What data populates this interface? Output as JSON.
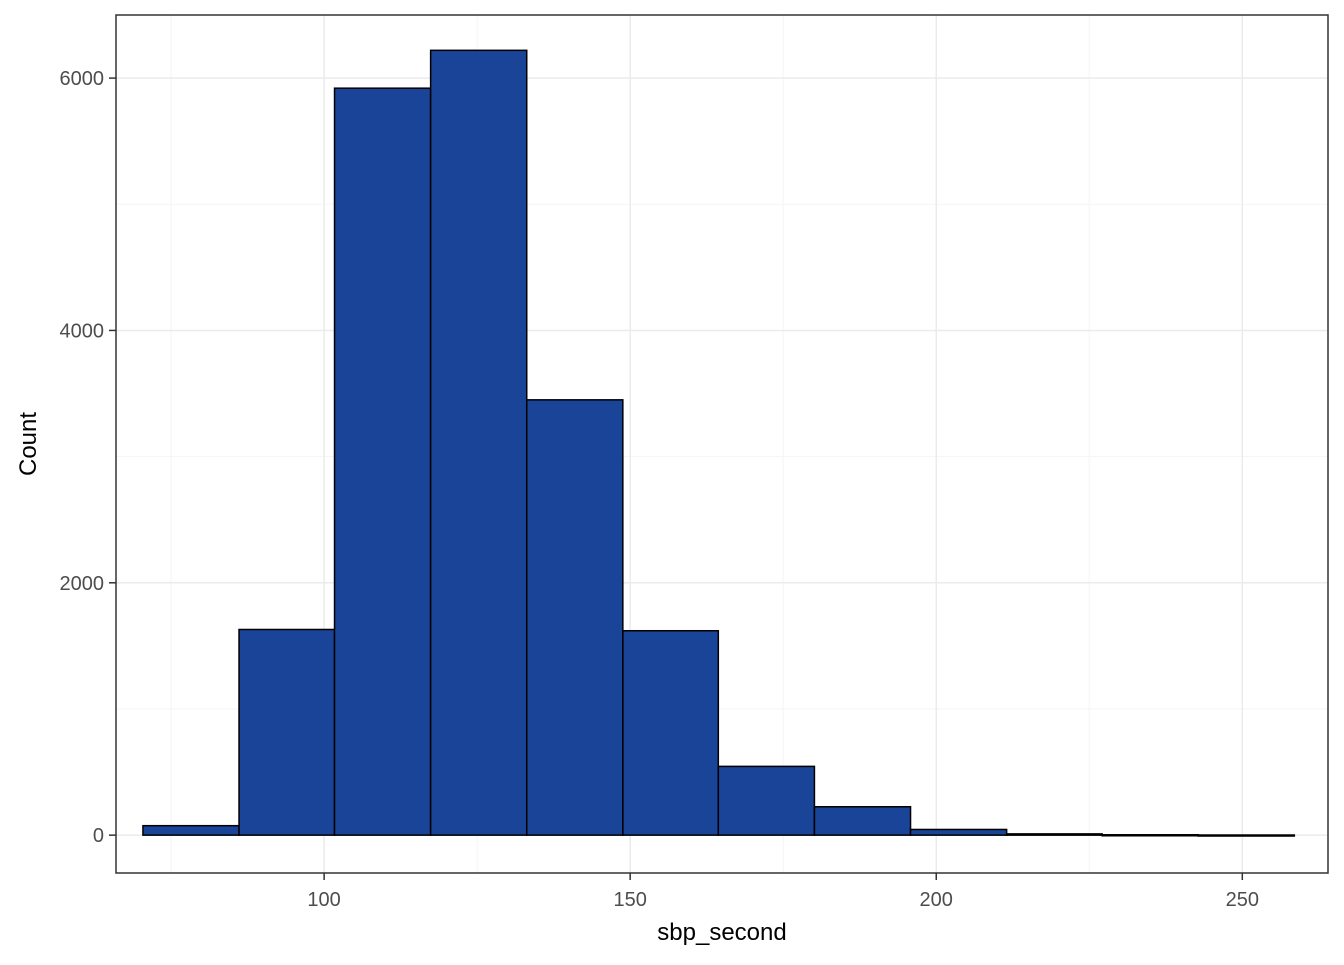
{
  "chart_data": {
    "type": "bar",
    "subtype": "histogram",
    "title": "",
    "xlabel": "sbp_second",
    "ylabel": "Count",
    "xlim": [
      66,
      264
    ],
    "ylim": [
      -300,
      6500
    ],
    "x_ticks": [
      100,
      150,
      200,
      250
    ],
    "x_minor_ticks": [
      75,
      125,
      175,
      225
    ],
    "y_ticks": [
      0,
      2000,
      4000,
      6000
    ],
    "y_minor_ticks": [
      1000,
      3000,
      5000
    ],
    "grid": true,
    "theme": "black-and-white",
    "bars": [
      {
        "x0": 70.4,
        "x1": 86.1,
        "count": 75
      },
      {
        "x0": 86.1,
        "x1": 101.7,
        "count": 1630
      },
      {
        "x0": 101.7,
        "x1": 117.4,
        "count": 5920
      },
      {
        "x0": 117.4,
        "x1": 133.1,
        "count": 6220
      },
      {
        "x0": 133.1,
        "x1": 148.8,
        "count": 3450
      },
      {
        "x0": 148.8,
        "x1": 164.4,
        "count": 1620
      },
      {
        "x0": 164.4,
        "x1": 180.1,
        "count": 545
      },
      {
        "x0": 180.1,
        "x1": 195.8,
        "count": 225
      },
      {
        "x0": 195.8,
        "x1": 211.5,
        "count": 45
      },
      {
        "x0": 211.5,
        "x1": 227.1,
        "count": 10
      },
      {
        "x0": 227.1,
        "x1": 242.8,
        "count": 3
      },
      {
        "x0": 242.8,
        "x1": 258.5,
        "count": 1
      }
    ],
    "colors": {
      "bar_fill": "#1A4498",
      "bar_stroke": "#000000",
      "panel_border": "#333333",
      "grid_major": "#EBEBEB",
      "grid_minor": "#F5F5F5",
      "tick_text": "#4D4D4D"
    }
  }
}
